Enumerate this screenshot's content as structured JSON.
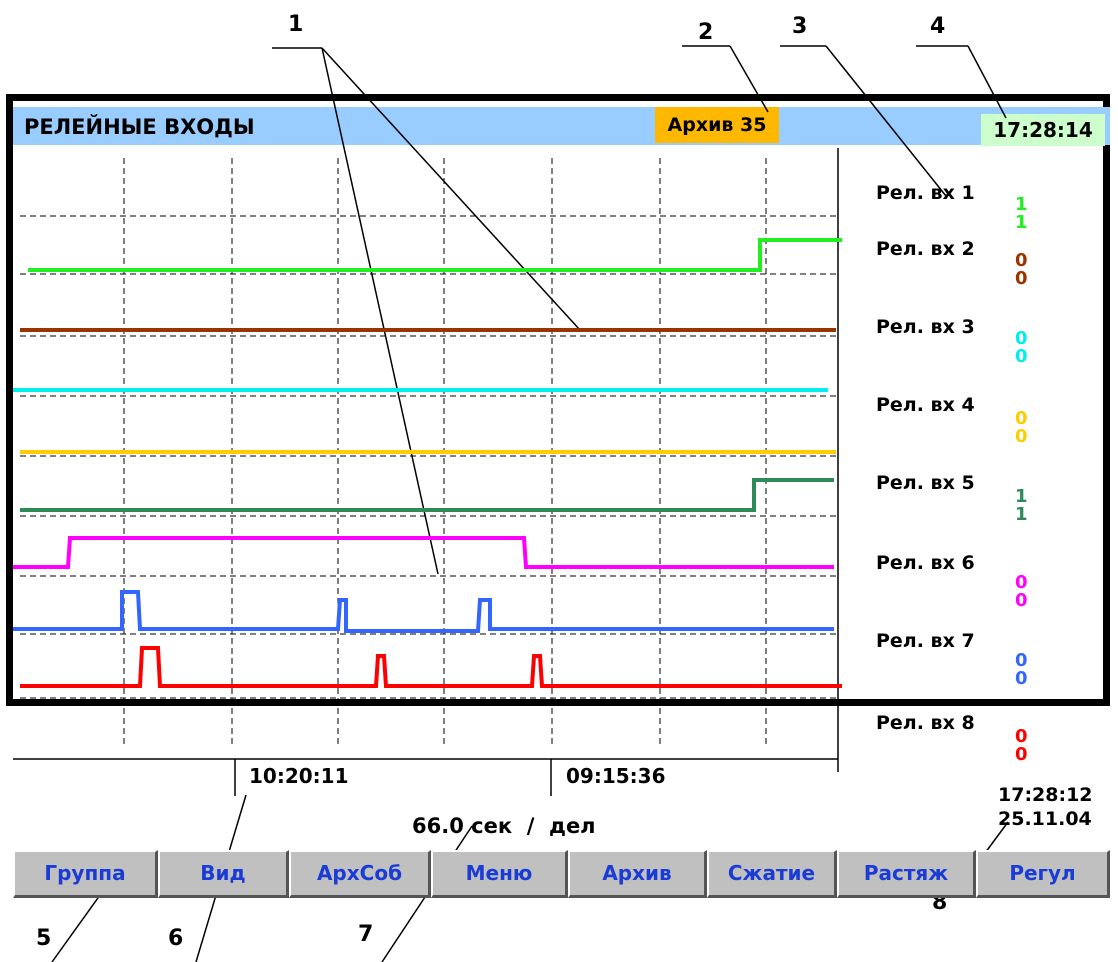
{
  "callouts": [
    "1",
    "2",
    "3",
    "4",
    "5",
    "6",
    "7",
    "8"
  ],
  "header": {
    "title": "РЕЛЕЙНЫЕ ВХОДЫ",
    "archive_label": "Архив 35",
    "clock": "17:28:14"
  },
  "channels": [
    {
      "label": "Рел. вх 1",
      "values": [
        "1",
        "1"
      ],
      "color": "#22ee22"
    },
    {
      "label": "Рел. вх 2",
      "values": [
        "0",
        "0"
      ],
      "color": "#993300"
    },
    {
      "label": "Рел. вх 3",
      "values": [
        "0",
        "0"
      ],
      "color": "#00eeee"
    },
    {
      "label": "Рел. вх 4",
      "values": [
        "0",
        "0"
      ],
      "color": "#ffcc00"
    },
    {
      "label": "Рел. вх 5",
      "values": [
        "1",
        "1"
      ],
      "color": "#2e8b57"
    },
    {
      "label": "Рел. вх 6",
      "values": [
        "0",
        "0"
      ],
      "color": "#ff00ff"
    },
    {
      "label": "Рел. вх 7",
      "values": [
        "0",
        "0"
      ],
      "color": "#3366ff"
    },
    {
      "label": "Рел. вх 8",
      "values": [
        "0",
        "0"
      ],
      "color": "#ff0000"
    }
  ],
  "time_axis": {
    "marker_left": "10:20:11",
    "marker_right": "09:15:36",
    "scale": "66.0 сек  /  дел"
  },
  "footer_datetime": {
    "time": "17:28:12",
    "date": "25.11.04"
  },
  "buttons": [
    "Группа",
    "Вид",
    "АрхСоб",
    "Меню",
    "Архив",
    "Сжатие",
    "Растяж",
    "Регул"
  ]
}
